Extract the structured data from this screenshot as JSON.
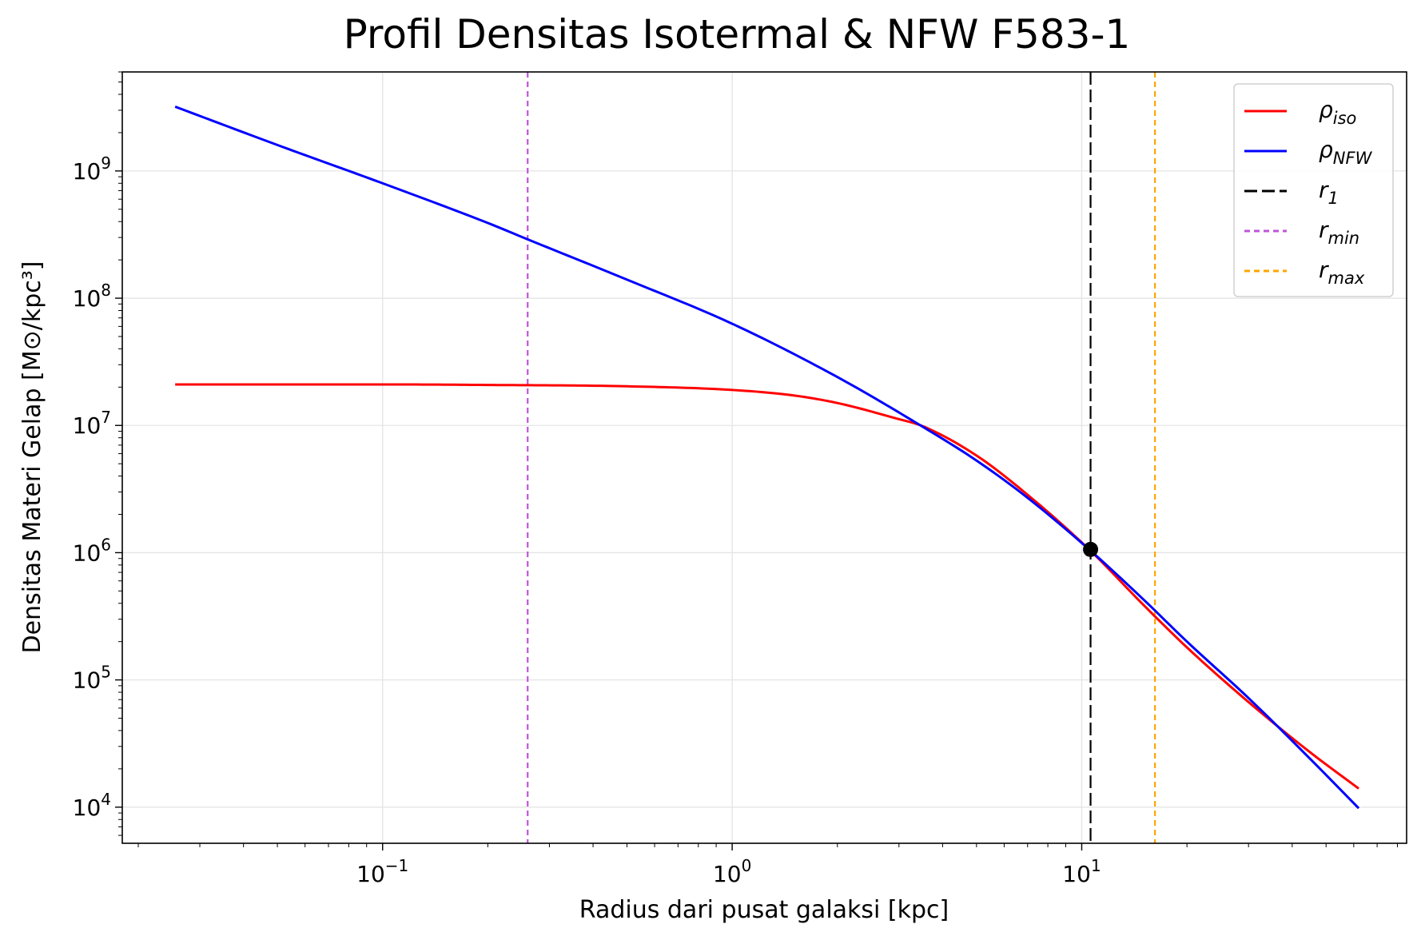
{
  "chart_data": {
    "type": "line",
    "title": "Profil Densitas Isotermal & NFW F583-1",
    "xlabel": "Radius dari pusat galaksi [kpc]",
    "ylabel": "Densitas Materi Gelap [M⊙/kpc³]",
    "xscale": "log",
    "yscale": "log",
    "xlim": [
      0.018,
      85
    ],
    "ylim": [
      5200,
      6000000000
    ],
    "grid": true,
    "legend_position": "top-right",
    "x_tick_labels": [
      {
        "value": 0.1,
        "base": "10",
        "exp": "−1"
      },
      {
        "value": 1,
        "base": "10",
        "exp": "0"
      },
      {
        "value": 10,
        "base": "10",
        "exp": "1"
      }
    ],
    "y_tick_labels": [
      {
        "value": 10000,
        "base": "10",
        "exp": "4"
      },
      {
        "value": 100000,
        "base": "10",
        "exp": "5"
      },
      {
        "value": 1000000,
        "base": "10",
        "exp": "6"
      },
      {
        "value": 10000000,
        "base": "10",
        "exp": "7"
      },
      {
        "value": 100000000,
        "base": "10",
        "exp": "8"
      },
      {
        "value": 1000000000,
        "base": "10",
        "exp": "9"
      }
    ],
    "series": [
      {
        "name": "ρ_iso",
        "legend_main": "ρ",
        "legend_sub": "iso",
        "color": "#ff0000",
        "style": "solid",
        "x": [
          0.0255,
          0.05,
          0.1,
          0.2,
          0.5,
          1,
          1.5,
          2,
          3,
          3.5,
          5,
          7,
          10.5,
          15,
          20,
          30,
          45,
          62
        ],
        "y": [
          21000000,
          21000000,
          21000000,
          20800000,
          20300000,
          19000000,
          17200000,
          15000000,
          11200000,
          9900000,
          5800000,
          2850000,
          1060000,
          390000,
          180000,
          67000,
          27000,
          14000
        ]
      },
      {
        "name": "ρ_NFW",
        "legend_main": "ρ",
        "legend_sub": "NFW",
        "color": "#0000ff",
        "style": "solid",
        "x": [
          0.0255,
          0.05,
          0.1,
          0.2,
          0.26,
          0.5,
          1,
          2,
          3.5,
          5,
          7,
          10.5,
          15,
          20,
          30,
          45,
          62
        ],
        "y": [
          3200000000,
          1600000000,
          800000000,
          390000000,
          290000000,
          140000000,
          63000000,
          24000000,
          9800000,
          5300000,
          2700000,
          1060000,
          430000,
          200000,
          72000,
          24000,
          9800
        ]
      }
    ],
    "vlines": [
      {
        "name": "r_1",
        "legend_main": "r",
        "legend_sub": "1",
        "x": 10.6,
        "color": "#000000",
        "style": "dashdash"
      },
      {
        "name": "r_min",
        "legend_main": "r",
        "legend_sub": "min",
        "x": 0.26,
        "color": "#bf55d8",
        "style": "dashed"
      },
      {
        "name": "r_max",
        "legend_main": "r",
        "legend_sub": "max",
        "x": 16.2,
        "color": "#ffa500",
        "style": "dashed"
      }
    ],
    "marker": {
      "x": 10.6,
      "y": 1060000,
      "color": "#000000"
    }
  }
}
